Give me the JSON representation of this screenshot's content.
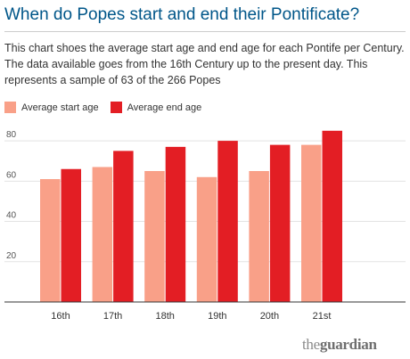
{
  "title": "When do Popes start and end their Pontificate?",
  "description": "This chart shoes the average start age and end age for each Pontife per Century. The data available goes from the 16th Century up to the present day. This represents a sample of 63 of the 266 Popes",
  "logo": {
    "the": "the",
    "guardian": "guardian"
  },
  "colors": {
    "start": "#f9a088",
    "end": "#e31e24",
    "title": "#005689"
  },
  "chart_data": {
    "type": "bar",
    "categories": [
      "16th",
      "17th",
      "18th",
      "19th",
      "20th",
      "21st"
    ],
    "series": [
      {
        "name": "Average start age",
        "values": [
          61,
          67,
          65,
          62,
          65,
          78
        ]
      },
      {
        "name": "Average end age",
        "values": [
          66,
          75,
          77,
          80,
          78,
          85
        ]
      }
    ],
    "yticks": [
      20,
      40,
      60,
      80
    ],
    "ylim": [
      0,
      88
    ],
    "grid": true,
    "legend": "top-left",
    "xlabel": "",
    "ylabel": ""
  }
}
